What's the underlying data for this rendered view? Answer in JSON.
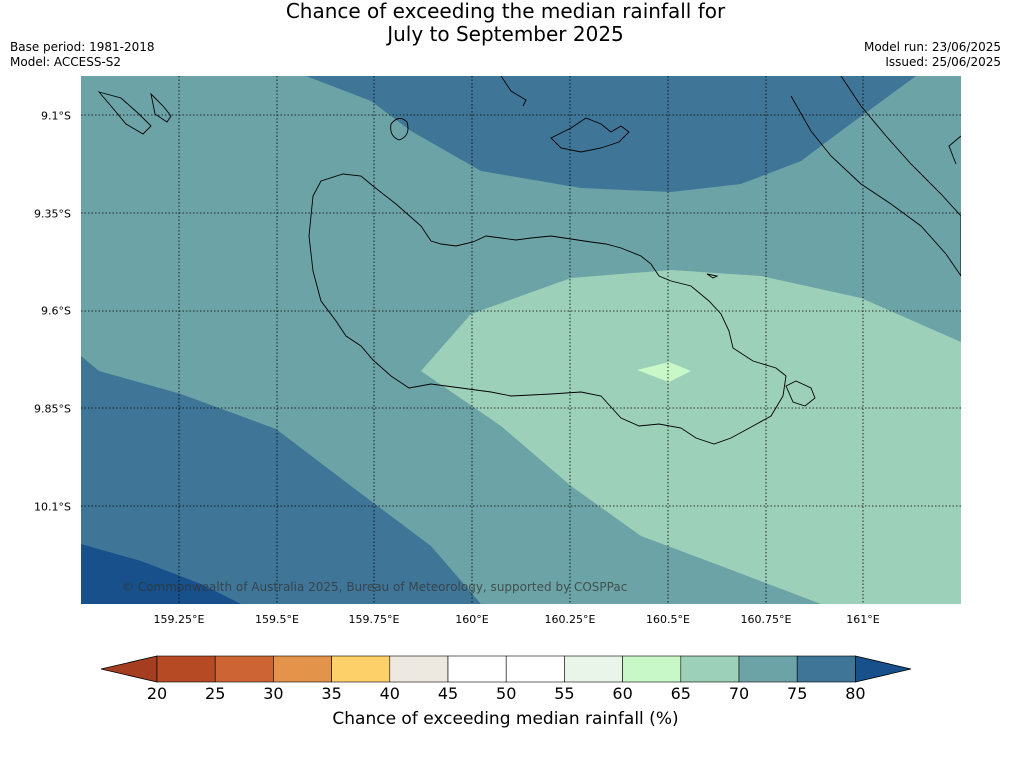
{
  "header": {
    "title_line1": "Chance of exceeding the median rainfall for",
    "title_line2": "July to September 2025",
    "base_period": "Base period: 1981-2018",
    "model": "Model: ACCESS-S2",
    "model_run": "Model run: 23/06/2025",
    "issued": "Issued: 25/06/2025"
  },
  "map": {
    "lat_labels": [
      "9.1°S",
      "9.35°S",
      "9.6°S",
      "9.85°S",
      "10.1°S"
    ],
    "lon_labels": [
      "159.25°E",
      "159.5°E",
      "159.75°E",
      "160°E",
      "160.25°E",
      "160.5°E",
      "160.75°E",
      "161°E"
    ],
    "copyright": "© Commonwealth of Australia 2025, Bureau of Meteorology, supported by COSPPac",
    "colors": {
      "band_60_65": "#c8f7c8",
      "band_65_70": "#9dd0b9",
      "band_70_75": "#6ca3a6",
      "band_75_80": "#3f7698",
      "band_80_plus": "#17508a"
    }
  },
  "colorbar": {
    "ticks": [
      "20",
      "25",
      "30",
      "35",
      "40",
      "45",
      "50",
      "55",
      "60",
      "65",
      "70",
      "75",
      "80"
    ],
    "colors": [
      "#a53d21",
      "#b54a25",
      "#cd6434",
      "#e3944a",
      "#fed06a",
      "#ede9e1",
      "#ffffff",
      "#ffffff",
      "#e9f5e9",
      "#c8f7c8",
      "#9dd0b9",
      "#6ca3a6",
      "#3f7698",
      "#17508a"
    ],
    "label": "Chance of exceeding median rainfall (%)"
  }
}
